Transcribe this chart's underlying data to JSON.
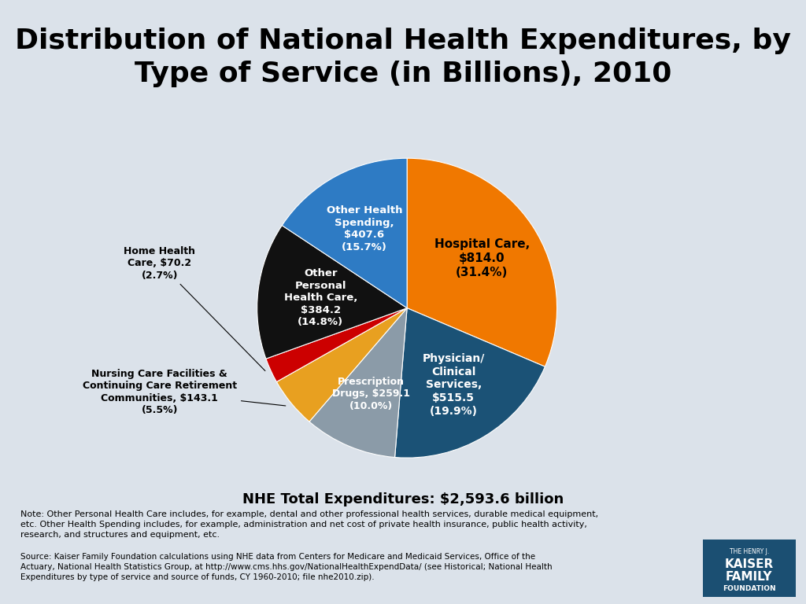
{
  "title_line1": "Distribution of National Health Expenditures, by",
  "title_line2": "Type of Service (in Billions), 2010",
  "title_fontsize": 26,
  "background_color": "#dbe2ea",
  "slices": [
    {
      "label": "Hospital Care,\n$814.0\n(31.4%)",
      "value": 31.4,
      "color": "#F07800",
      "text_color": "black",
      "label_inside": true
    },
    {
      "label": "Physician/\nClinical\nServices,\n$515.5\n(19.9%)",
      "value": 19.9,
      "color": "#1B5276",
      "text_color": "white",
      "label_inside": true
    },
    {
      "label": "Prescription\nDrugs, $259.1\n(10.0%)",
      "value": 10.0,
      "color": "#8B9BA8",
      "text_color": "white",
      "label_inside": true
    },
    {
      "label": "Nursing Care Facilities &\nContinuing Care Retirement\nCommunities, $143.1\n(5.5%)",
      "value": 5.5,
      "color": "#E8A020",
      "text_color": "black",
      "label_inside": false
    },
    {
      "label": "Home Health\nCare, $70.2\n(2.7%)",
      "value": 2.7,
      "color": "#CC0000",
      "text_color": "black",
      "label_inside": false
    },
    {
      "label": "Other\nPersonal\nHealth Care,\n$384.2\n(14.8%)",
      "value": 14.8,
      "color": "#111111",
      "text_color": "white",
      "label_inside": true
    },
    {
      "label": "Other Health\nSpending,\n$407.6\n(15.7%)",
      "value": 15.7,
      "color": "#2E7BC4",
      "text_color": "white",
      "label_inside": true
    }
  ],
  "total_label": "NHE Total Expenditures: $2,593.6 billion",
  "note_text": "Note: Other Personal Health Care includes, for example, dental and other professional health services, durable medical equipment,\netc. Other Health Spending includes, for example, administration and net cost of private health insurance, public health activity,\nresearch, and structures and equipment, etc.",
  "source_text": "Source: Kaiser Family Foundation calculations using NHE data from Centers for Medicare and Medicaid Services, Office of the\nActuary, National Health Statistics Group, at http://www.cms.hhs.gov/NationalHealthExpendData/ (see Historical; National Health\nExpenditures by type of service and source of funds, CY 1960-2010; file nhe2010.zip).",
  "logo_color": "#1B4F72"
}
